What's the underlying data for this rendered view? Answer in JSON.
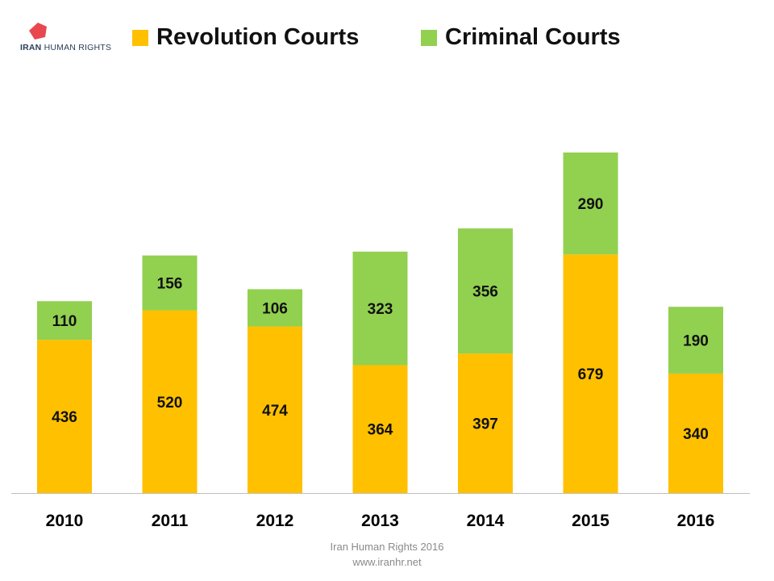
{
  "logo": {
    "text_bold": "IRAN",
    "text_rest": "HUMAN RIGHTS",
    "color": "#E8474E"
  },
  "footer": {
    "line1": "Iran Human Rights  2016",
    "line2": "www.iranhr.net"
  },
  "chart_data": {
    "type": "bar",
    "stacked": true,
    "categories": [
      "2010",
      "2011",
      "2012",
      "2013",
      "2014",
      "2015",
      "2016"
    ],
    "series": [
      {
        "name": "Revolution Courts",
        "color": "#FFC000",
        "values": [
          436,
          520,
          474,
          364,
          397,
          679,
          340
        ]
      },
      {
        "name": "Criminal Courts",
        "color": "#92D050",
        "values": [
          110,
          156,
          106,
          323,
          356,
          290,
          190
        ]
      }
    ],
    "legend": "top",
    "grid": false,
    "ylim": [
      0,
      969
    ]
  }
}
